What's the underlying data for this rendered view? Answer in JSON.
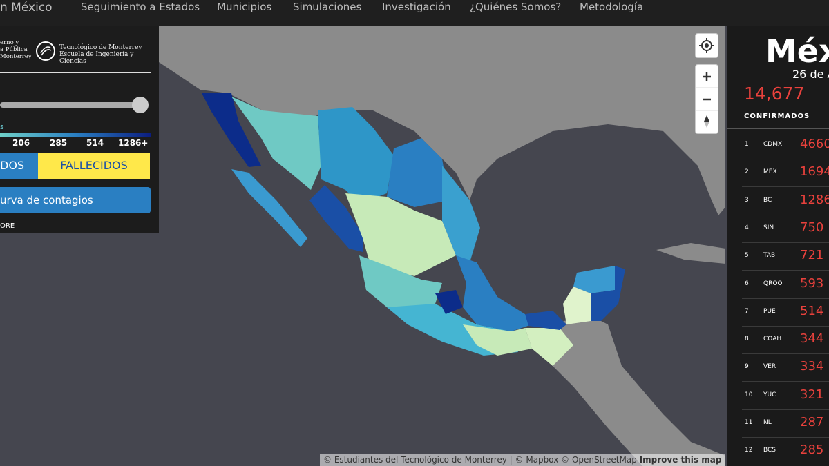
{
  "nav": {
    "brand": "n México",
    "links": [
      "Seguimiento a Estados",
      "Municipios",
      "Simulaciones",
      "Investigación",
      "¿Quiénes Somos?",
      "Metodología"
    ]
  },
  "panel": {
    "logo_left": [
      "erno y",
      "a Pública",
      "Monterrey"
    ],
    "logo_right": [
      "Tecnológico de Monterrey",
      "Escuela de Ingeniería y Ciencias"
    ],
    "legend": {
      "label": "s",
      "ticks": [
        "206",
        "285",
        "514",
        "1286+"
      ]
    },
    "buttons": [
      "DOS",
      "FALLECIDOS"
    ],
    "curve_button": "urva de contagios",
    "more": "ORE"
  },
  "summary": {
    "title": "Méx",
    "date": "26 de A",
    "total": "14,677",
    "label": "CONFIRMADOS"
  },
  "ranking": [
    {
      "rank": 1,
      "state": "CDMX",
      "value": 4660
    },
    {
      "rank": 2,
      "state": "MEX",
      "value": 1694
    },
    {
      "rank": 3,
      "state": "BC",
      "value": 1286
    },
    {
      "rank": 4,
      "state": "SIN",
      "value": 750
    },
    {
      "rank": 5,
      "state": "TAB",
      "value": 721
    },
    {
      "rank": 6,
      "state": "QROO",
      "value": 593
    },
    {
      "rank": 7,
      "state": "PUE",
      "value": 514
    },
    {
      "rank": 8,
      "state": "COAH",
      "value": 344
    },
    {
      "rank": 9,
      "state": "VER",
      "value": 334
    },
    {
      "rank": 10,
      "state": "YUC",
      "value": 321
    },
    {
      "rank": 11,
      "state": "NL",
      "value": 287
    },
    {
      "rank": 12,
      "state": "BCS",
      "value": 285
    }
  ],
  "attribution": {
    "text": "© Estudiantes del Tecnológico de Monterrey | © Mapbox © OpenStreetMap",
    "link": "Improve this map"
  }
}
